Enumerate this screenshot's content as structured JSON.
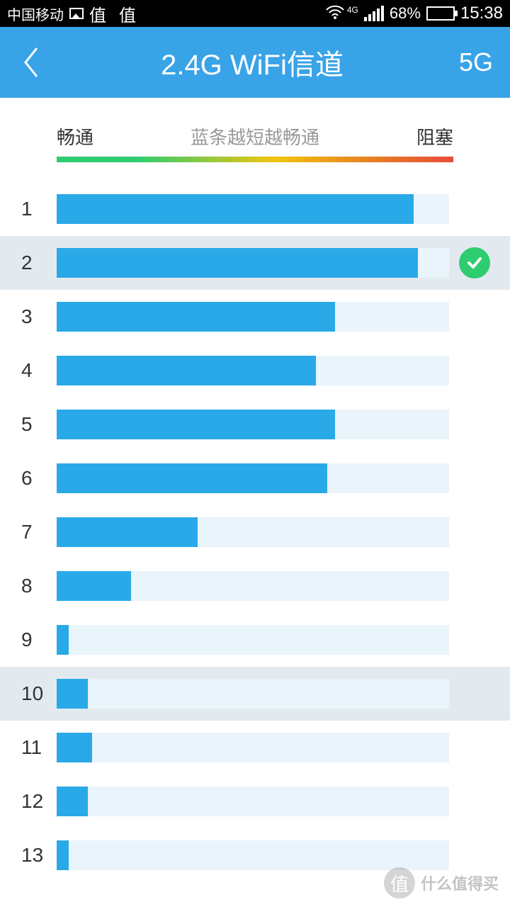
{
  "status": {
    "carrier": "中国移动",
    "app_label": "值 值",
    "network": "4G",
    "battery_pct_text": "68%",
    "battery_fill_pct": 68,
    "time": "15:38"
  },
  "nav": {
    "title": "2.4G WiFi信道",
    "right": "5G"
  },
  "legend": {
    "left": "畅通",
    "mid": "蓝条越短越畅通",
    "right": "阻塞"
  },
  "colors": {
    "nav_bg": "#39a3e8",
    "bar_fill": "#2aa9e8",
    "bar_track": "#eaf4fb",
    "highlight_bg": "#e3eaef",
    "check_bg": "#2ecc71"
  },
  "channels": [
    {
      "num": "1",
      "pct": 91,
      "highlight": false,
      "selected": false
    },
    {
      "num": "2",
      "pct": 92,
      "highlight": true,
      "selected": true
    },
    {
      "num": "3",
      "pct": 71,
      "highlight": false,
      "selected": false
    },
    {
      "num": "4",
      "pct": 66,
      "highlight": false,
      "selected": false
    },
    {
      "num": "5",
      "pct": 71,
      "highlight": false,
      "selected": false
    },
    {
      "num": "6",
      "pct": 69,
      "highlight": false,
      "selected": false
    },
    {
      "num": "7",
      "pct": 36,
      "highlight": false,
      "selected": false
    },
    {
      "num": "8",
      "pct": 19,
      "highlight": false,
      "selected": false
    },
    {
      "num": "9",
      "pct": 3,
      "highlight": false,
      "selected": false
    },
    {
      "num": "10",
      "pct": 8,
      "highlight": true,
      "selected": false
    },
    {
      "num": "11",
      "pct": 9,
      "highlight": false,
      "selected": false
    },
    {
      "num": "12",
      "pct": 8,
      "highlight": false,
      "selected": false
    },
    {
      "num": "13",
      "pct": 3,
      "highlight": false,
      "selected": false
    }
  ],
  "watermark": {
    "badge": "值",
    "text": "什么值得买"
  }
}
